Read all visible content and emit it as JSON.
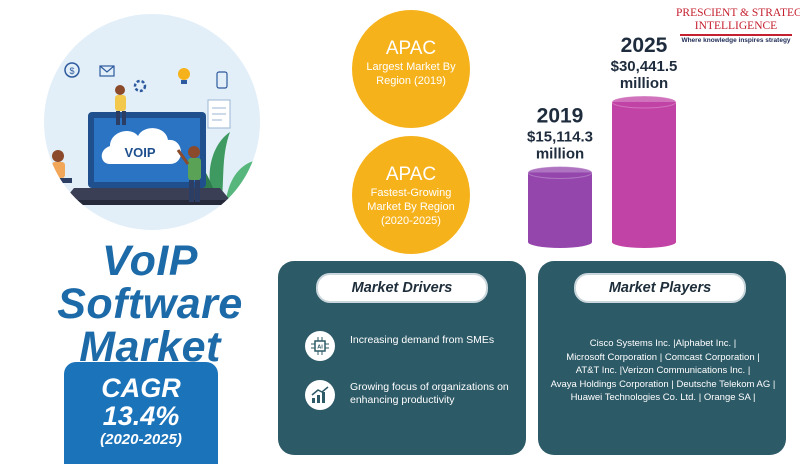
{
  "logo": {
    "line1": "PRESCIENT & STRATEGIC",
    "line2": "INTELLIGENCE",
    "tagline": "Where knowledge inspires strategy"
  },
  "hero": {
    "screen_label": "VOIP",
    "title_lines": [
      "VoIP",
      "Software",
      "Market"
    ]
  },
  "cagr": {
    "label": "CAGR",
    "value": "13.4%",
    "period": "(2020-2025)"
  },
  "stats": [
    {
      "big": "APAC",
      "small": "Largest Market By Region (2019)"
    },
    {
      "big": "APAC",
      "small": "Fastest-Growing Market By Region (2020-2025)"
    }
  ],
  "chart_data": {
    "type": "bar",
    "categories": [
      "2019",
      "2025"
    ],
    "values": [
      15114.3,
      30441.5
    ],
    "data_labels": [
      "$15,114.3 million",
      "$30,441.5 million"
    ],
    "series": [
      {
        "values": [
          15114.3,
          30441.5
        ],
        "colors": [
          "#9446ad",
          "#c243a6"
        ]
      }
    ],
    "title": "",
    "xlabel": "",
    "ylabel": "",
    "ylim": [
      0,
      30441.5
    ]
  },
  "drivers": {
    "heading": "Market Drivers",
    "items": [
      {
        "icon": "ai-chip-icon",
        "text": "Increasing demand from SMEs"
      },
      {
        "icon": "growth-chart-icon",
        "text": "Growing focus of organizations on enhancing productivity"
      }
    ]
  },
  "players": {
    "heading": "Market Players",
    "items": [
      "Cisco Systems Inc. |",
      "Alphabet Inc. |",
      "Microsoft Corporation |",
      "Comcast Corporation |",
      "AT&T Inc. |",
      "Verizon Communications Inc. |",
      "Avaya Holdings Corporation |",
      "Deutsche Telekom AG |",
      "Huawei Technologies Co. Ltd. |",
      "Orange SA |"
    ]
  },
  "colors": {
    "brand_blue": "#1b73ba",
    "panel_teal": "#2d5a67",
    "stat_orange": "#f6b21b",
    "bar_2019": "#9446ad",
    "bar_2025": "#c243a6"
  }
}
